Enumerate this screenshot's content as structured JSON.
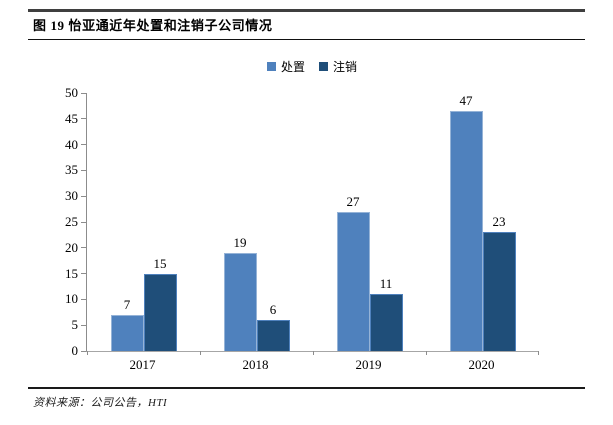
{
  "header": {
    "title": "图 19 怡亚通近年处置和注销子公司情况"
  },
  "footer": {
    "source": "资料来源：公司公告，HTI"
  },
  "chart_data": {
    "type": "bar",
    "title": "图 19 怡亚通近年处置和注销子公司情况",
    "categories": [
      "2017",
      "2018",
      "2019",
      "2020"
    ],
    "series": [
      {
        "name": "处置",
        "values": [
          7,
          19,
          27,
          47
        ],
        "color": "#4F81BD",
        "edge_color": "#95B3D7"
      },
      {
        "name": "注销",
        "values": [
          15,
          6,
          11,
          23
        ],
        "color": "#1F4E79",
        "edge_color": "#4F81BD"
      }
    ],
    "ylim": [
      0,
      50
    ],
    "ytick_step": 5,
    "xlabel": "",
    "ylabel": "",
    "grid": false,
    "legend_position": "top-center",
    "value_labels": true,
    "axis_color": "#8c8c8c"
  }
}
